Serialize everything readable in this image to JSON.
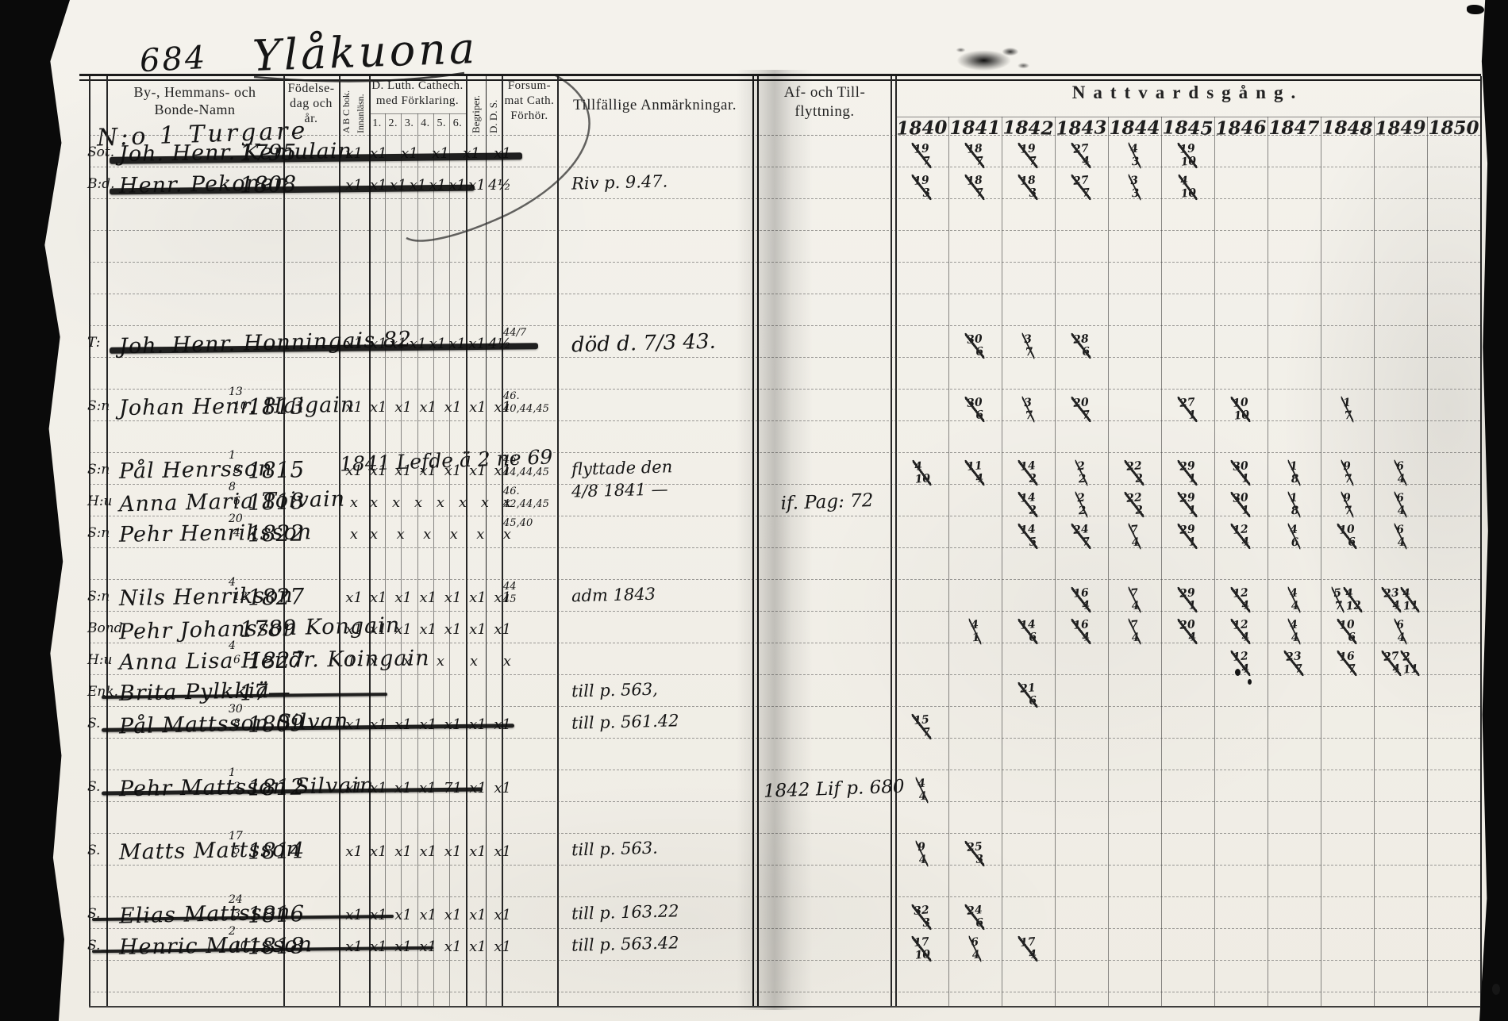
{
  "page": {
    "number": "684",
    "place": "Ylåkuona"
  },
  "header": {
    "name_col": [
      "By-, Hemmans- och",
      "Bonde-Namn"
    ],
    "birth_col": [
      "Födelse-",
      "dag och",
      "år."
    ],
    "abc_col": [
      "A B C bok.",
      "Innanläsn."
    ],
    "cat_col": [
      "D. Luth. Cathech.",
      "med Förklaring."
    ],
    "cat_nums": [
      "1.",
      "2.",
      "3.",
      "4.",
      "5.",
      "6."
    ],
    "begriper_col": "Begriper.",
    "dds_col": "D. D. S.",
    "fors_col": [
      "Forsum-",
      "mat Cath.",
      "Förhör."
    ],
    "remarks_col": "Tillfällige Anmärkningar.",
    "moving_col": [
      "Af- och Till-",
      "flyttning."
    ],
    "communion_col": "Nattvardsgång.",
    "years": [
      "1840",
      "1841",
      "1842",
      "1843",
      "1844",
      "1845",
      "1846",
      "1847",
      "1848",
      "1849",
      "1850"
    ]
  },
  "heading": "N:o 1 Turgare",
  "annotations": {
    "overwrite": "1841 Lefde ä 2 ne 69"
  },
  "rows": [
    {
      "pre": "Sot.",
      "name": "Joh. Henr. Kemulain",
      "year": "1795",
      "abc": "x1",
      "cat": "x1 x1 x1 x1 x1",
      "struck": true,
      "comm": {
        "1840": "19/7",
        "1841": "18/7",
        "1842": "19/7",
        "1843": "27/4",
        "1844": "4/3",
        "1845": "19/10"
      }
    },
    {
      "pre": "B:d.",
      "name": "Henr. Pekonen",
      "year": "1808",
      "abc": "x1",
      "cat": "x1 x1 x1 x1 x1 x1 4½",
      "struck": true,
      "remark": [
        "Riv p. 9.47."
      ],
      "comm": {
        "1840": "19/3",
        "1841": "18/7",
        "1842": "18/3",
        "1843": "27/7",
        "1844": "3/3",
        "1845": "4/10"
      }
    },
    {
      "pre": "T:",
      "name": "Joh. Henr. Honningais 82",
      "abc": "x1",
      "cat": "x1 x1 x1 x1 x1 x1 4½",
      "fors": [
        "44/7"
      ],
      "struck": true,
      "remark": [
        "död d. 7/3 43."
      ],
      "comm": {
        "1841": "30/6",
        "1842": "3/7",
        "1843": "28/6"
      }
    },
    {
      "pre": "S:n",
      "name": "Johan Henr. Haigain",
      "day": "13/10",
      "year": "1813",
      "abc": "x1",
      "cat": "x1 x1 x1 x1 x1 x1",
      "fors": [
        "46.",
        "40,44,45"
      ],
      "comm": {
        "1841": "30/6",
        "1842": "3/7",
        "1843": "20/7",
        "1845": "27/1",
        "1846": "10/10",
        "1848": "1/7"
      }
    },
    {
      "pre": "S:n",
      "name": "Pål Henrsson",
      "day": "1/8",
      "year": "1815",
      "abc": "x1",
      "cat": "x1 x1 x1 x1 x1 x1",
      "fors": [
        "46.",
        "44,44,45"
      ],
      "remark": [
        "flyttade den",
        "4/8 1841 —"
      ],
      "moving": "if. Pag: 72",
      "comm": {
        "1840": "4/10",
        "1841": "11/4",
        "1842": "14/2",
        "1843": "2/2",
        "1844": "22/2",
        "1845": "29/1",
        "1846": "30/1",
        "1847": "1/8",
        "1848": "9/7",
        "1849": "6/4"
      }
    },
    {
      "pre": "H:u",
      "name": "Anna Maria Toivain",
      "day": "8/6",
      "year": "1818",
      "abc": "x",
      "cat": "x x x x x x x",
      "fors": [
        "46.",
        "42,44,45"
      ],
      "comm": {
        "1842": "14/2",
        "1843": "2/2",
        "1844": "22/2",
        "1845": "29/1",
        "1846": "30/1",
        "1847": "1/8",
        "1848": "9/7",
        "1849": "6/4"
      }
    },
    {
      "pre": "S:n",
      "name": "Pehr Henriksson",
      "day": "20/4",
      "year": "1822",
      "abc": "x",
      "cat": "x x x x x x",
      "fors": [
        "45,40"
      ],
      "comm": {
        "1842": "14/5",
        "1843": "24/7",
        "1844": "7/4",
        "1845": "29/1",
        "1846": "12/4",
        "1847": "4/6",
        "1848": "10/6",
        "1849": "6/4"
      }
    },
    {
      "pre": "S:n",
      "name": "Nils Henrikson",
      "day": "4/12",
      "year": "1827",
      "abc": "x1",
      "cat": "x1 x1 x1 x1 x1 x1",
      "fors": [
        "44",
        "45"
      ],
      "remark": [
        "adm 1843"
      ],
      "comm": {
        "1843": "16/4",
        "1844": "7/4",
        "1845": "29/1",
        "1846": "12/4",
        "1847": "4/4",
        "1848": "5/7 4/12",
        "1849": "23/4 4/11"
      }
    },
    {
      "pre": "Bond.",
      "name": "Pehr Johansson Kongain",
      "year": "1789",
      "abc": "x1",
      "cat": "x1 x1 x1 x1 x1 x1",
      "comm": {
        "1841": "4/1",
        "1842": "14/6",
        "1843": "16/4",
        "1844": "7/4",
        "1845": "20/4",
        "1846": "12/4",
        "1847": "4/4",
        "1848": "10/6",
        "1849": "6/4"
      }
    },
    {
      "pre": "H:u",
      "name": "Anna Lisa Hendr. Koingain",
      "day": "4/6",
      "year": "1827",
      "abc": "1.",
      "cat": "x x x x x",
      "comm": {
        "1846": "12/4",
        "1847": "23/7",
        "1848": "16/7",
        "1849": "27/4 2/11"
      }
    },
    {
      "pre": "Enk.",
      "name": "Brita Pylkkiä",
      "year": "17—",
      "struck": true,
      "remark": [
        "till p. 563,"
      ],
      "comm": {
        "1842": "21/6"
      }
    },
    {
      "pre": "S.",
      "name": "Pål Mattsson Silvan",
      "day": "30/8",
      "year": "1809",
      "abc": "x1",
      "cat": "x1 x1 x1 x1 x1 x1",
      "struck": true,
      "remark": [
        "till p. 561.42"
      ],
      "comm": {
        "1840": "15/7"
      }
    },
    {
      "pre": "S.",
      "name": "Pehr Mattsson Silvain",
      "day": "1/2",
      "year": "1812",
      "abc": "x1",
      "cat": "x1 x1 x1 71 x1 x1",
      "struck": true,
      "moving": "1842 Lif p. 680",
      "comm": {
        "1840": "4/4"
      }
    },
    {
      "pre": "S.",
      "name": "Matts Mattsson",
      "day": "17/5",
      "year": "1814",
      "abc": "x1",
      "cat": "x1 x1 x1 x1 x1 x1",
      "remark": [
        "till p. 563."
      ],
      "comm": {
        "1840": "9/4",
        "1841": "25/3"
      }
    },
    {
      "pre": "S.",
      "name": "Elias Mattsson",
      "day": "24/3",
      "year": "1816",
      "abc": "x1",
      "cat": "x1 x1 x1 x1 x1 x1",
      "struck": true,
      "remark": [
        "till p. 163.22"
      ],
      "comm": {
        "1840": "32/3",
        "1841": "24/6"
      }
    },
    {
      "pre": "S.",
      "name": "Henric Mattsson",
      "day": "2/10",
      "year": "1818",
      "abc": "x1",
      "cat": "x1 x1 x1 x1 x1 x1",
      "struck": true,
      "remark": [
        "till p. 563.42"
      ],
      "comm": {
        "1840": "17/10",
        "1841": "6/4",
        "1842": "17/4"
      }
    }
  ]
}
